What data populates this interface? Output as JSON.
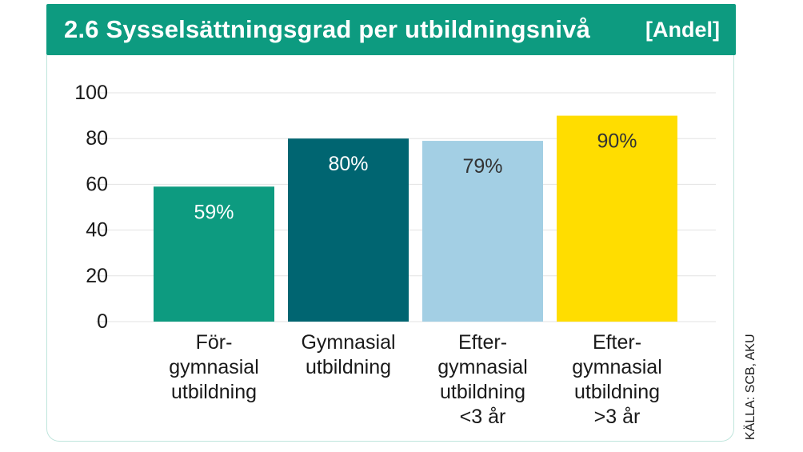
{
  "header": {
    "title": "2.6  Sysselsättningsgrad per utbildningsnivå",
    "unit": "[Andel]"
  },
  "source": "KÄLLA: SCB, AKU",
  "colors": {
    "header": "#0d9b80",
    "grid": "#e3e3e3",
    "frame": "#bfe5dc"
  },
  "chart_data": {
    "type": "bar",
    "title": "2.6  Sysselsättningsgrad per utbildningsnivå",
    "ylim": [
      0,
      100
    ],
    "yticks": [
      "0",
      "20",
      "40",
      "60",
      "80",
      "100"
    ],
    "grid": true,
    "categories": [
      [
        "För-",
        "gymnasial",
        "utbildning"
      ],
      [
        "Gymnasial",
        "utbildning"
      ],
      [
        "Efter-",
        "gymnasial",
        "utbildning",
        "<3 år"
      ],
      [
        "Efter-",
        "gymnasial",
        "utbildning",
        ">3 år"
      ]
    ],
    "values": [
      59,
      80,
      79,
      90
    ],
    "labels": [
      "59%",
      "80%",
      "79%",
      "90%"
    ],
    "bar_colors": [
      "#0d9b80",
      "#006571",
      "#a3cfe4",
      "#ffdd00"
    ],
    "label_colors": [
      "#ffffff",
      "#ffffff",
      "#333333",
      "#333333"
    ]
  }
}
